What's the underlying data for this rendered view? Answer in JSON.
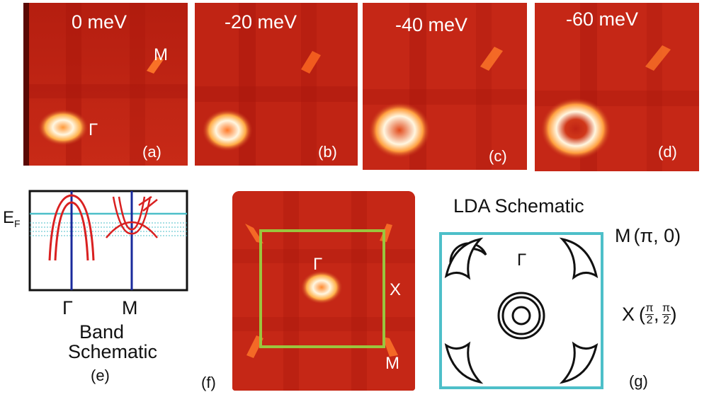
{
  "panels": [
    {
      "energy": "0 meV",
      "tag": "(a)",
      "point_m": "M",
      "point_g": "Γ"
    },
    {
      "energy": "-20 meV",
      "tag": "(b)"
    },
    {
      "energy": "-40 meV",
      "tag": "(c)"
    },
    {
      "energy": "-60 meV",
      "tag": "(d)"
    }
  ],
  "band": {
    "ef_label": "E",
    "ef_sub": "F",
    "x_labels": [
      "Γ",
      "M"
    ],
    "caption_line1": "Band",
    "caption_line2": "Schematic",
    "tag": "(e)"
  },
  "map_f": {
    "tag": "(f)",
    "gamma": "Γ",
    "x": "X",
    "m": "M"
  },
  "lda": {
    "title": "LDA Schematic",
    "m_label": "M",
    "m_coord": "(π, 0)",
    "x_label": "X",
    "x_open": "(",
    "x_close": ")",
    "pi": "π",
    "two": "2",
    "comma": ",",
    "gamma": "Γ",
    "tag": "(g)"
  },
  "colors": {
    "map_base": "#c02414",
    "map_bright": "#fff6e0",
    "square": "#9bc53d",
    "zone": "#4dbfc9",
    "band_line": "#d92020",
    "band_axis": "#1a2a9c"
  }
}
